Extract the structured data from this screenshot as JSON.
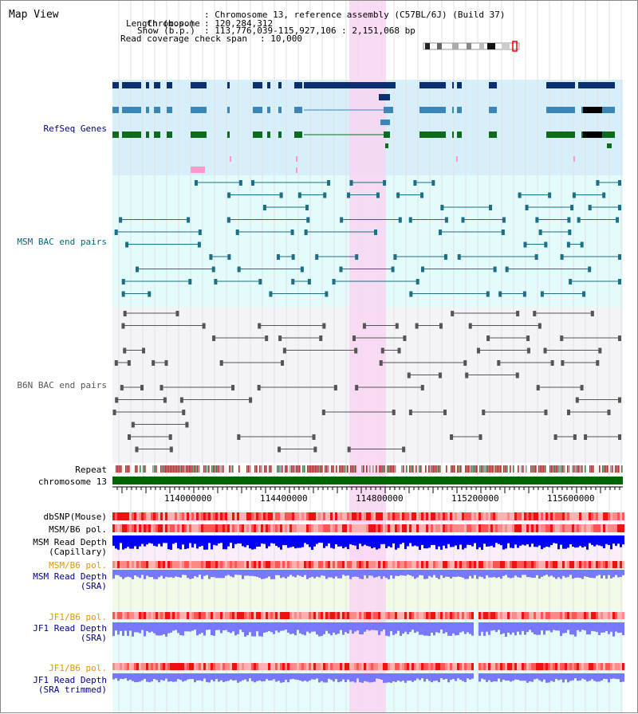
{
  "app": {
    "title": "Map View"
  },
  "info": {
    "chromosome_key": "Chromosome",
    "chromosome_val": ": Chromosome 13, reference assembly (C57BL/6J) (Build 37)",
    "length_key": "Length (b.p.)",
    "length_val": ": 120,284,312",
    "show_key": "Show (b.p.)",
    "show_val": ": 113,776,039-115,927,106 : 2,151,068 bp",
    "coverage_key": "Read coverage check span",
    "coverage_val": ": 10,000"
  },
  "tracks": {
    "refseq": "RefSeq Genes",
    "msm_bac": "MSM BAC end pairs",
    "b6n_bac": "B6N BAC end pairs",
    "repeat": "Repeat",
    "chromosome": "chromosome 13",
    "dbsnp": "dbSNP(Mouse)",
    "msm_b6_pol_1": "MSM/B6 pol.",
    "msm_depth_cap_1": "MSM Read Depth",
    "msm_depth_cap_2": "(Capillary)",
    "msm_b6_pol_2": "MSM/B6 pol.",
    "msm_depth_sra_1": "MSM Read Depth",
    "msm_depth_sra_2": "(SRA)",
    "jf1_b6_pol_1": "JF1/B6 pol.",
    "jf1_depth_sra_1": "JF1 Read Depth",
    "jf1_depth_sra_2": "(SRA)",
    "jf1_b6_pol_2": "JF1/B6 pol.",
    "jf1_depth_trim_1": "JF1 Read Depth",
    "jf1_depth_trim_2": "(SRA trimmed)"
  },
  "axis": {
    "ticks": [
      "114000000",
      "114400000",
      "114800000",
      "115200000",
      "115600000"
    ]
  },
  "colors": {
    "highlight": "#f9d5f2",
    "refseq_bg": "#d6effa",
    "msm_bg": "#e3fbfb",
    "b6n_bg": "#f4f4f8",
    "gene_dark": "#0a3070",
    "gene_mid": "#3a86b8",
    "gene_green": "#0d6b1d",
    "msm_line": "#1c6f86",
    "b6n_line": "#555555",
    "chrom_green": "#006400",
    "pol_red": "#ff4040",
    "depth_blue": "#0000ff",
    "depth_light": "#7777ff"
  }
}
